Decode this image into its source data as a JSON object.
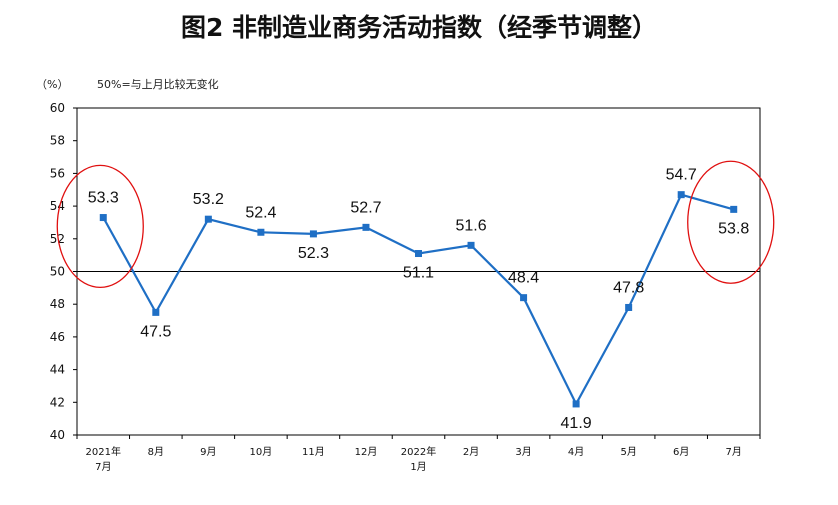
{
  "title": "图2 非制造业商务活动指数（经季节调整）",
  "unit_label": "（%）",
  "reference_note": "50%=与上月比较无变化",
  "chart_data": {
    "type": "line",
    "title": "图2 非制造业商务活动指数（经季节调整）",
    "categories": [
      [
        "2021年",
        "7月"
      ],
      [
        "8月"
      ],
      [
        "9月"
      ],
      [
        "10月"
      ],
      [
        "11月"
      ],
      [
        "12月"
      ],
      [
        "2022年",
        "1月"
      ],
      [
        "2月"
      ],
      [
        "3月"
      ],
      [
        "4月"
      ],
      [
        "5月"
      ],
      [
        "6月"
      ],
      [
        "7月"
      ]
    ],
    "values": [
      53.3,
      47.5,
      53.2,
      52.4,
      52.3,
      52.7,
      51.1,
      51.6,
      48.4,
      41.9,
      47.8,
      54.7,
      53.8
    ],
    "ylim": [
      40,
      60
    ],
    "yticks": [
      40,
      42,
      44,
      46,
      48,
      50,
      52,
      54,
      56,
      58,
      60
    ],
    "reference_line": 50,
    "highlighted_points": [
      0,
      12
    ],
    "colors": {
      "line": "#1f6fc5",
      "marker": "#1f6fc5",
      "highlight": "#e01010",
      "reference": "#000000"
    }
  }
}
